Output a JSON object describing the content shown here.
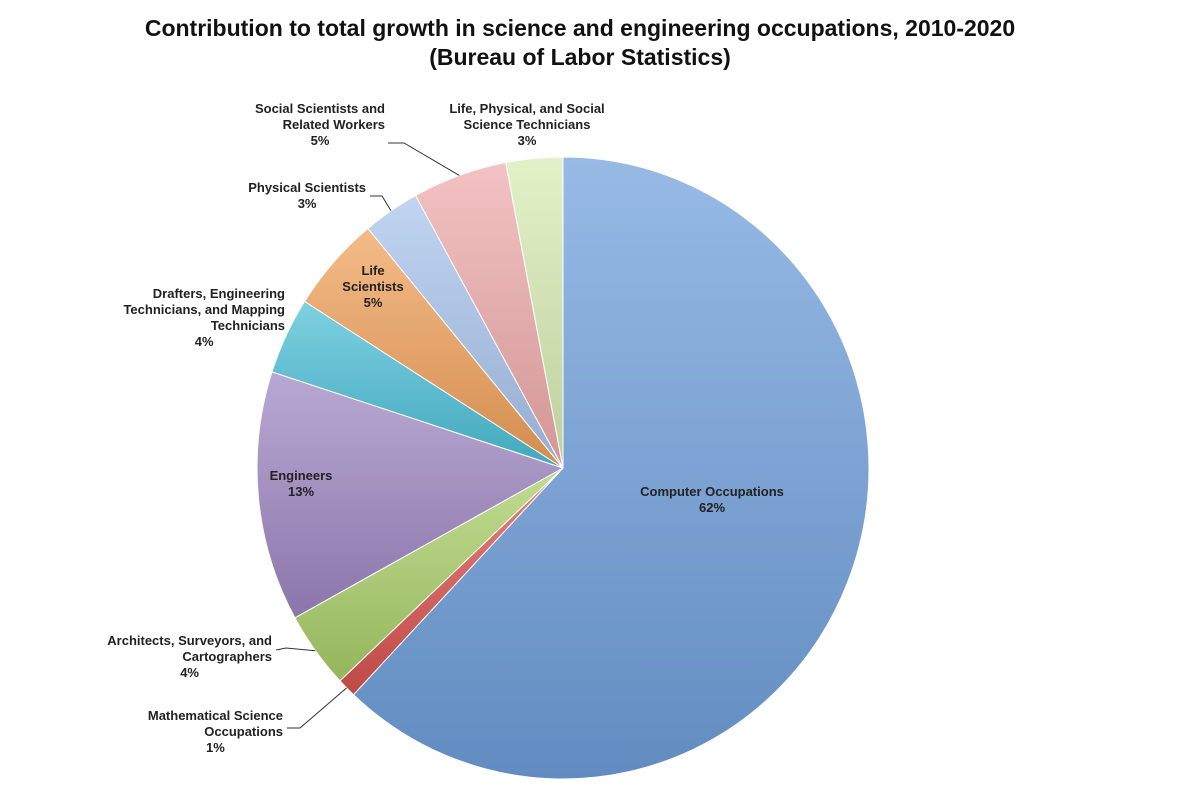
{
  "chart_data": {
    "type": "pie",
    "title": "Contribution to total growth in science and engineering occupations, 2010-2020",
    "subtitle": "(Bureau of Labor Statistics)",
    "start_angle_deg": 0,
    "direction": "clockwise",
    "slices": [
      {
        "label": [
          "Computer Occupations"
        ],
        "value": 62,
        "display": "62%",
        "label_position": "inside",
        "color": "#6f9fdb"
      },
      {
        "label": [
          "Mathematical Science",
          "Occupations"
        ],
        "value": 1,
        "display": "1%",
        "label_position": "outside",
        "color": "#d9534f"
      },
      {
        "label": [
          "Architects, Surveyors, and",
          "Cartographers"
        ],
        "value": 4,
        "display": "4%",
        "label_position": "outside",
        "color": "#a9cf68"
      },
      {
        "label": [
          "Engineers"
        ],
        "value": 13,
        "display": "13%",
        "label_position": "inside",
        "color": "#9e86c2"
      },
      {
        "label": [
          "Drafters, Engineering",
          "Technicians, and Mapping",
          "Technicians"
        ],
        "value": 4,
        "display": "4%",
        "label_position": "outside",
        "color": "#4bbfd6"
      },
      {
        "label": [
          "Life",
          "Scientists"
        ],
        "value": 5,
        "display": "5%",
        "label_position": "inside",
        "color": "#f0a05a"
      },
      {
        "label": [
          "Physical Scientists"
        ],
        "value": 3,
        "display": "3%",
        "label_position": "outside",
        "color": "#a9c4ec"
      },
      {
        "label": [
          "Social Scientists and",
          "Related Workers"
        ],
        "value": 5,
        "display": "5%",
        "label_position": "outside",
        "color": "#efaaaa"
      },
      {
        "label": [
          "Life, Physical, and Social",
          "Science Technicians"
        ],
        "value": 3,
        "display": "3%",
        "label_position": "outside",
        "color": "#d8ecb2"
      }
    ]
  }
}
